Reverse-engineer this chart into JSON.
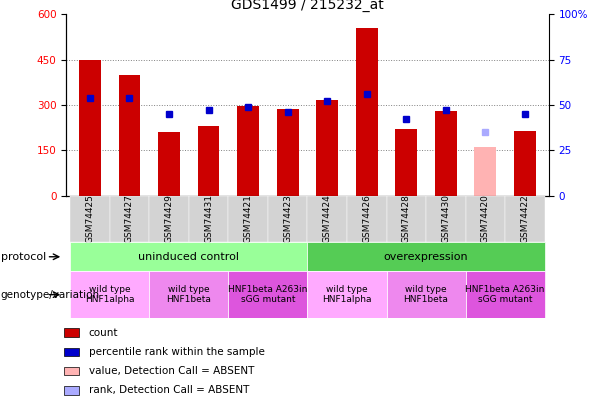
{
  "title": "GDS1499 / 215232_at",
  "samples": [
    "GSM74425",
    "GSM74427",
    "GSM74429",
    "GSM74431",
    "GSM74421",
    "GSM74423",
    "GSM74424",
    "GSM74426",
    "GSM74428",
    "GSM74430",
    "GSM74420",
    "GSM74422"
  ],
  "bar_values": [
    450,
    400,
    210,
    230,
    295,
    285,
    315,
    555,
    220,
    280,
    160,
    215
  ],
  "bar_absent": [
    false,
    false,
    false,
    false,
    false,
    false,
    false,
    false,
    false,
    false,
    true,
    false
  ],
  "percentile_values": [
    54,
    54,
    45,
    47,
    49,
    46,
    52,
    56,
    42,
    47,
    35,
    45
  ],
  "percentile_absent": [
    false,
    false,
    false,
    false,
    false,
    false,
    false,
    false,
    false,
    false,
    true,
    false
  ],
  "ylim_left": [
    0,
    600
  ],
  "ylim_right": [
    0,
    100
  ],
  "yticks_left": [
    0,
    150,
    300,
    450,
    600
  ],
  "yticks_right": [
    0,
    25,
    50,
    75,
    100
  ],
  "bar_color": "#cc0000",
  "bar_absent_color": "#ffb3b3",
  "dot_color": "#0000cc",
  "dot_absent_color": "#aaaaff",
  "protocol_groups": [
    {
      "label": "uninduced control",
      "start": 0,
      "end": 6,
      "color": "#99ff99"
    },
    {
      "label": "overexpression",
      "start": 6,
      "end": 12,
      "color": "#55cc55"
    }
  ],
  "genotype_groups": [
    {
      "label": "wild type\nHNF1alpha",
      "start": 0,
      "end": 2,
      "color": "#ffaaff"
    },
    {
      "label": "wild type\nHNF1beta",
      "start": 2,
      "end": 4,
      "color": "#ee88ee"
    },
    {
      "label": "HNF1beta A263in\nsGG mutant",
      "start": 4,
      "end": 6,
      "color": "#dd55dd"
    },
    {
      "label": "wild type\nHNF1alpha",
      "start": 6,
      "end": 8,
      "color": "#ffaaff"
    },
    {
      "label": "wild type\nHNF1beta",
      "start": 8,
      "end": 10,
      "color": "#ee88ee"
    },
    {
      "label": "HNF1beta A263in\nsGG mutant",
      "start": 10,
      "end": 12,
      "color": "#dd55dd"
    }
  ],
  "legend_items": [
    {
      "label": "count",
      "color": "#cc0000"
    },
    {
      "label": "percentile rank within the sample",
      "color": "#0000cc"
    },
    {
      "label": "value, Detection Call = ABSENT",
      "color": "#ffb3b3"
    },
    {
      "label": "rank, Detection Call = ABSENT",
      "color": "#aaaaff"
    }
  ],
  "fig_width": 6.13,
  "fig_height": 4.05,
  "dpi": 100
}
